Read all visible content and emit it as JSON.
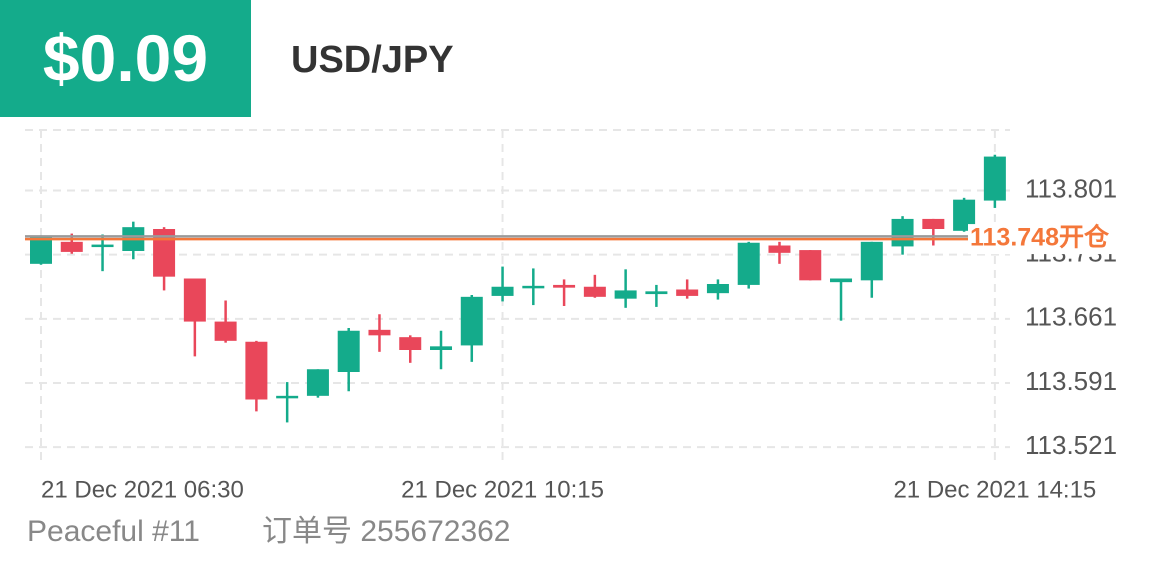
{
  "header": {
    "amount": "$0.09",
    "pair": "USD/JPY"
  },
  "chart_data": {
    "type": "candlestick",
    "categories": [
      "21 Dec 2021 06:30",
      null,
      null,
      null,
      null,
      null,
      null,
      null,
      null,
      null,
      null,
      null,
      null,
      null,
      null,
      "21 Dec 2021 10:15",
      null,
      null,
      null,
      null,
      null,
      null,
      null,
      null,
      null,
      null,
      null,
      null,
      null,
      null,
      null,
      "21 Dec 2021 14:15"
    ],
    "open": [
      113.721,
      113.745,
      113.74,
      113.735,
      113.759,
      113.705,
      113.658,
      113.636,
      113.575,
      113.577,
      113.603,
      113.649,
      113.641,
      113.627,
      113.632,
      113.686,
      113.695,
      113.698,
      113.696,
      113.683,
      113.688,
      113.693,
      113.689,
      113.698,
      113.741,
      113.736,
      113.701,
      113.703,
      113.74,
      113.77,
      113.757,
      113.79
    ],
    "high": [
      113.752,
      113.754,
      113.753,
      113.767,
      113.761,
      113.705,
      113.681,
      113.637,
      113.592,
      113.606,
      113.651,
      113.666,
      113.643,
      113.648,
      113.687,
      113.718,
      113.716,
      113.704,
      113.709,
      113.715,
      113.698,
      113.704,
      113.704,
      113.745,
      113.745,
      113.736,
      113.705,
      113.745,
      113.773,
      113.77,
      113.793,
      113.84
    ],
    "low": [
      113.72,
      113.732,
      113.713,
      113.726,
      113.692,
      113.62,
      113.635,
      113.56,
      113.548,
      113.575,
      113.582,
      113.625,
      113.613,
      113.606,
      113.614,
      113.68,
      113.676,
      113.675,
      113.684,
      113.673,
      113.674,
      113.683,
      113.682,
      113.694,
      113.721,
      113.703,
      113.659,
      113.684,
      113.731,
      113.741,
      113.756,
      113.782
    ],
    "close": [
      113.75,
      113.734,
      113.742,
      113.761,
      113.707,
      113.658,
      113.637,
      113.573,
      113.577,
      113.606,
      113.648,
      113.643,
      113.627,
      113.631,
      113.685,
      113.696,
      113.697,
      113.695,
      113.685,
      113.692,
      113.691,
      113.686,
      113.699,
      113.744,
      113.733,
      113.703,
      113.705,
      113.745,
      113.77,
      113.759,
      113.791,
      113.838
    ],
    "up_color": "#14ab8b",
    "down_color": "#e9475a",
    "ylim": [
      113.507,
      113.867
    ],
    "yticks": [
      113.521,
      113.591,
      113.661,
      113.731,
      113.801
    ],
    "grid": true,
    "price_line": {
      "value": 113.751,
      "color": "#9a9a9a"
    },
    "open_line": {
      "value": 113.748,
      "label": "113.748开仓",
      "color": "#f4773a"
    }
  },
  "footer": {
    "account": "Peaceful #11",
    "order": "订单号 255672362"
  }
}
